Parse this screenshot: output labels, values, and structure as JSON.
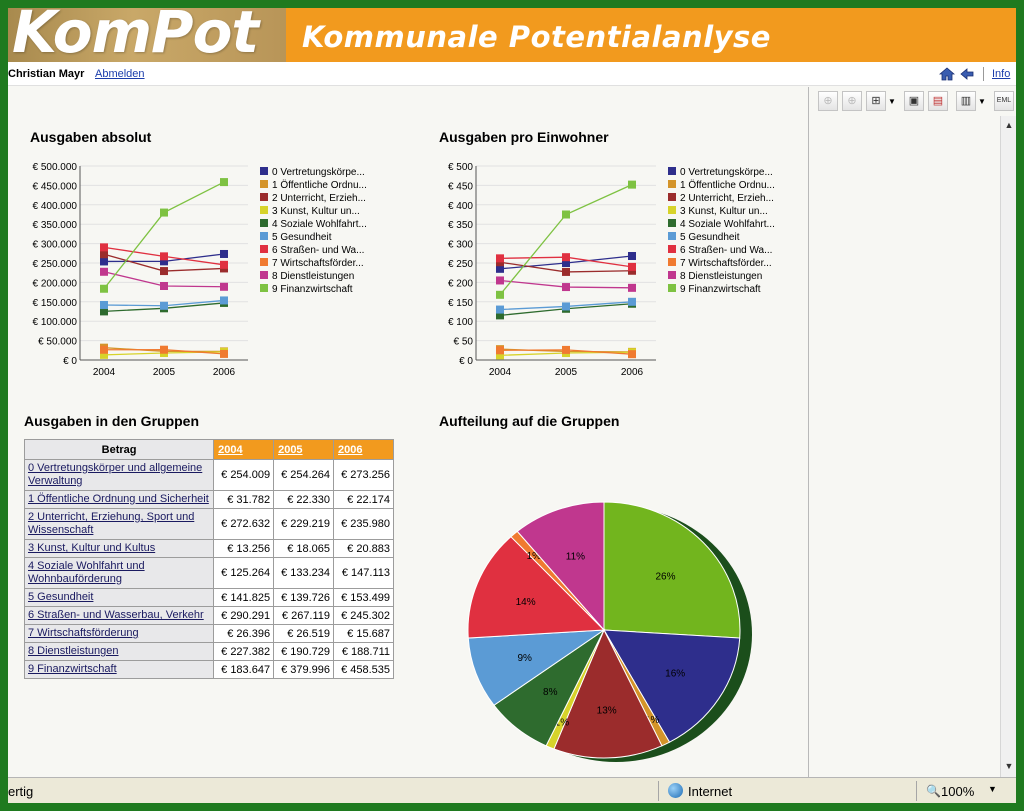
{
  "header": {
    "logo": "KomPot",
    "title": "Kommunale Potentialanlyse"
  },
  "userbar": {
    "user": "Christian Mayr",
    "logout": "Abmelden",
    "info": "Info"
  },
  "charts": {
    "absolut_title": "Ausgaben absolut",
    "einwohner_title": "Ausgaben pro Einwohner",
    "table_title": "Ausgaben in den Gruppen",
    "pie_title": "Aufteilung auf die Gruppen"
  },
  "chart_data": [
    {
      "type": "line",
      "title": "Ausgaben absolut",
      "x": [
        "2004",
        "2005",
        "2006"
      ],
      "yticks": [
        "€ 500.000",
        "€ 450.000",
        "€ 400.000",
        "€ 350.000",
        "€ 300.000",
        "€ 250.000",
        "€ 200.000",
        "€ 150.000",
        "€ 100.000",
        "€ 50.000",
        "€ 0"
      ],
      "ylim": [
        0,
        500000
      ],
      "legend_position": "right",
      "series": [
        {
          "name": "0 Vertretungskörpe...",
          "color": "#2e2e8c",
          "values": [
            254009,
            254264,
            273256
          ]
        },
        {
          "name": "1 Öffentliche Ordnu...",
          "color": "#d4942a",
          "values": [
            31782,
            22330,
            22174
          ]
        },
        {
          "name": "2 Unterricht, Erzieh...",
          "color": "#9b2c2c",
          "values": [
            272632,
            229219,
            235980
          ]
        },
        {
          "name": "3 Kunst, Kultur un...",
          "color": "#d7d32a",
          "values": [
            13256,
            18065,
            20883
          ]
        },
        {
          "name": "4 Soziale Wohlfahrt...",
          "color": "#2e6b2e",
          "values": [
            125264,
            133234,
            147113
          ]
        },
        {
          "name": "5 Gesundheit",
          "color": "#5b9bd5",
          "values": [
            141825,
            139726,
            153499
          ]
        },
        {
          "name": "6 Straßen- und Wa...",
          "color": "#e03040",
          "values": [
            290291,
            267119,
            245302
          ]
        },
        {
          "name": "7 Wirtschaftsförder...",
          "color": "#f07a30",
          "values": [
            26396,
            26519,
            15687
          ]
        },
        {
          "name": "8 Dienstleistungen",
          "color": "#c0378e",
          "values": [
            227382,
            190729,
            188711
          ]
        },
        {
          "name": "9 Finanzwirtschaft",
          "color": "#7ec242",
          "values": [
            183647,
            379996,
            458535
          ]
        }
      ]
    },
    {
      "type": "line",
      "title": "Ausgaben pro Einwohner",
      "x": [
        "2004",
        "2005",
        "2006"
      ],
      "yticks": [
        "€ 500",
        "€ 450",
        "€ 400",
        "€ 350",
        "€ 300",
        "€ 250",
        "€ 200",
        "€ 150",
        "€ 100",
        "€ 50",
        "€ 0"
      ],
      "ylim": [
        0,
        500
      ],
      "legend_position": "right",
      "series": [
        {
          "name": "0 Vertretungskörpe...",
          "color": "#2e2e8c",
          "values": [
            235,
            250,
            268
          ]
        },
        {
          "name": "1 Öffentliche Ordnu...",
          "color": "#d4942a",
          "values": [
            28,
            22,
            21
          ]
        },
        {
          "name": "2 Unterricht, Erzieh...",
          "color": "#9b2c2c",
          "values": [
            252,
            227,
            230
          ]
        },
        {
          "name": "3 Kunst, Kultur un...",
          "color": "#d7d32a",
          "values": [
            12,
            18,
            20
          ]
        },
        {
          "name": "4 Soziale Wohlfahrt...",
          "color": "#2e6b2e",
          "values": [
            115,
            132,
            145
          ]
        },
        {
          "name": "5 Gesundheit",
          "color": "#5b9bd5",
          "values": [
            130,
            138,
            150
          ]
        },
        {
          "name": "6 Straßen- und Wa...",
          "color": "#e03040",
          "values": [
            262,
            265,
            240
          ]
        },
        {
          "name": "7 Wirtschaftsförder...",
          "color": "#f07a30",
          "values": [
            25,
            26,
            15
          ]
        },
        {
          "name": "8 Dienstleistungen",
          "color": "#c0378e",
          "values": [
            205,
            188,
            186
          ]
        },
        {
          "name": "9 Finanzwirtschaft",
          "color": "#7ec242",
          "values": [
            168,
            375,
            452
          ]
        }
      ]
    },
    {
      "type": "table",
      "title": "Ausgaben in den Gruppen",
      "columns": [
        "Betrag",
        "2004",
        "2005",
        "2006"
      ],
      "rows": [
        [
          "0 Vertretungskörper und allgemeine Verwaltung",
          "€ 254.009",
          "€ 254.264",
          "€ 273.256"
        ],
        [
          "1 Öffentliche Ordnung und Sicherheit",
          "€ 31.782",
          "€ 22.330",
          "€ 22.174"
        ],
        [
          "2 Unterricht, Erziehung, Sport und Wissenschaft",
          "€ 272.632",
          "€ 229.219",
          "€ 235.980"
        ],
        [
          "3 Kunst, Kultur und Kultus",
          "€ 13.256",
          "€ 18.065",
          "€ 20.883"
        ],
        [
          "4 Soziale Wohlfahrt und Wohnbauförderung",
          "€ 125.264",
          "€ 133.234",
          "€ 147.113"
        ],
        [
          "5 Gesundheit",
          "€ 141.825",
          "€ 139.726",
          "€ 153.499"
        ],
        [
          "6 Straßen- und Wasserbau, Verkehr",
          "€ 290.291",
          "€ 267.119",
          "€ 245.302"
        ],
        [
          "7 Wirtschaftsförderung",
          "€ 26.396",
          "€ 26.519",
          "€ 15.687"
        ],
        [
          "8 Dienstleistungen",
          "€ 227.382",
          "€ 190.729",
          "€ 188.711"
        ],
        [
          "9 Finanzwirtschaft",
          "€ 183.647",
          "€ 379.996",
          "€ 458.535"
        ]
      ]
    },
    {
      "type": "pie",
      "title": "Aufteilung auf die Gruppen",
      "slices": [
        {
          "label": "26%",
          "value": 26,
          "color": "#72b51e"
        },
        {
          "label": "16%",
          "value": 16,
          "color": "#2e2e8c"
        },
        {
          "label": "1%",
          "value": 1,
          "color": "#d4942a"
        },
        {
          "label": "13%",
          "value": 13,
          "color": "#9b2c2c"
        },
        {
          "label": "1%",
          "value": 1,
          "color": "#d7d32a"
        },
        {
          "label": "8%",
          "value": 8,
          "color": "#2e6b2e"
        },
        {
          "label": "9%",
          "value": 9,
          "color": "#5b9bd5"
        },
        {
          "label": "14%",
          "value": 14,
          "color": "#e03040"
        },
        {
          "label": "1%",
          "value": 1,
          "color": "#f07a30"
        },
        {
          "label": "11%",
          "value": 11,
          "color": "#c0378e"
        }
      ]
    }
  ],
  "toolbar": {
    "icons": [
      "print-icon",
      "mail-icon",
      "play-icon",
      "zoom-in-icon",
      "zoom-out-icon",
      "add-icon",
      "window-icon",
      "calendar-icon",
      "columns-icon",
      "email-export-icon"
    ]
  },
  "statusbar": {
    "status": "ertig",
    "zone": "Internet",
    "zoom": "100%"
  }
}
